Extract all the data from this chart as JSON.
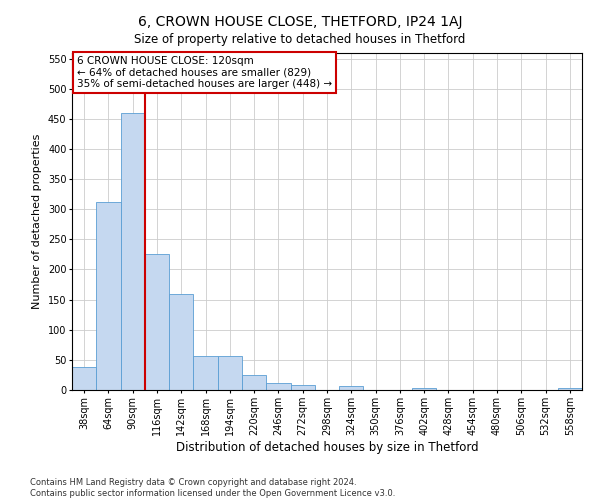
{
  "title": "6, CROWN HOUSE CLOSE, THETFORD, IP24 1AJ",
  "subtitle": "Size of property relative to detached houses in Thetford",
  "xlabel": "Distribution of detached houses by size in Thetford",
  "ylabel": "Number of detached properties",
  "footnote": "Contains HM Land Registry data © Crown copyright and database right 2024.\nContains public sector information licensed under the Open Government Licence v3.0.",
  "bar_labels": [
    "38sqm",
    "64sqm",
    "90sqm",
    "116sqm",
    "142sqm",
    "168sqm",
    "194sqm",
    "220sqm",
    "246sqm",
    "272sqm",
    "298sqm",
    "324sqm",
    "350sqm",
    "376sqm",
    "402sqm",
    "428sqm",
    "454sqm",
    "480sqm",
    "506sqm",
    "532sqm",
    "558sqm"
  ],
  "bar_values": [
    38,
    312,
    459,
    225,
    160,
    57,
    57,
    25,
    11,
    9,
    0,
    6,
    0,
    0,
    3,
    0,
    0,
    0,
    0,
    0,
    4
  ],
  "bar_color": "#c5d8f0",
  "bar_edge_color": "#5a9ed4",
  "vline_index": 3,
  "vline_color": "#cc0000",
  "annotation_text": "6 CROWN HOUSE CLOSE: 120sqm\n← 64% of detached houses are smaller (829)\n35% of semi-detached houses are larger (448) →",
  "annotation_box_color": "#ffffff",
  "annotation_box_edge": "#cc0000",
  "ylim": [
    0,
    560
  ],
  "yticks": [
    0,
    50,
    100,
    150,
    200,
    250,
    300,
    350,
    400,
    450,
    500,
    550
  ],
  "background_color": "#ffffff",
  "grid_color": "#cccccc",
  "title_fontsize": 10,
  "subtitle_fontsize": 8.5,
  "ylabel_fontsize": 8,
  "xlabel_fontsize": 8.5,
  "tick_fontsize": 7,
  "annotation_fontsize": 7.5,
  "footnote_fontsize": 6
}
